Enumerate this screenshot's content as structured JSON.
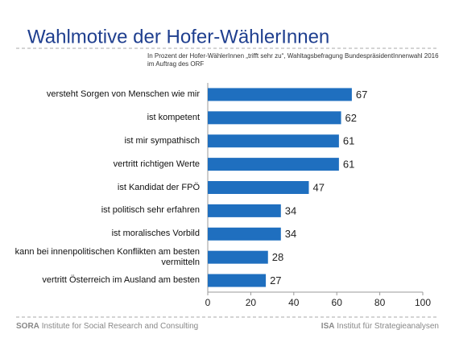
{
  "chart_data": {
    "type": "bar",
    "orientation": "horizontal",
    "title": "Wahlmotive der Hofer-WählerInnen",
    "subtitle": [
      "In Prozent der Hofer-WählerInnen „trifft sehr zu“, Wahltagsbefragung BundespräsidentInnenwahl 2016",
      "im Auftrag des ORF"
    ],
    "categories": [
      "versteht Sorgen von Menschen wie mir",
      "ist kompetent",
      "ist mir sympathisch",
      "vertritt richtigen Werte",
      "ist Kandidat der FPÖ",
      "ist politisch sehr erfahren",
      "ist moralisches Vorbild",
      "kann bei innenpolitischen Konflikten am besten vermitteln",
      "vertritt Österreich im Ausland am besten"
    ],
    "values": [
      67,
      62,
      61,
      61,
      47,
      34,
      34,
      28,
      27
    ],
    "color": "#1f6fbf",
    "xlim": [
      0,
      100
    ],
    "xticks": [
      0,
      20,
      40,
      60,
      80,
      100
    ],
    "grid": false
  },
  "footer": {
    "left_bold": "SORA",
    "left": "Institute for Social Research and Consulting",
    "right_bold": "ISA",
    "right": "Institut für Strategieanalysen"
  }
}
